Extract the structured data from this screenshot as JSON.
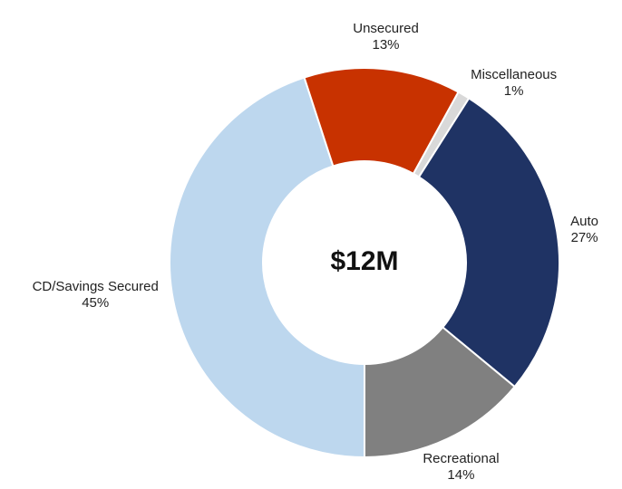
{
  "chart_data": {
    "type": "donut",
    "center_label": "$12M",
    "categories": [
      "CD/Savings Secured",
      "Unsecured",
      "Miscellaneous",
      "Auto",
      "Recreational"
    ],
    "values": [
      45,
      13,
      1,
      27,
      14
    ],
    "value_labels": [
      "45%",
      "13%",
      "1%",
      "27%",
      "14%"
    ],
    "colors": [
      "#bdd7ee",
      "#c83200",
      "#d9d9d9",
      "#1f3364",
      "#808080"
    ]
  }
}
